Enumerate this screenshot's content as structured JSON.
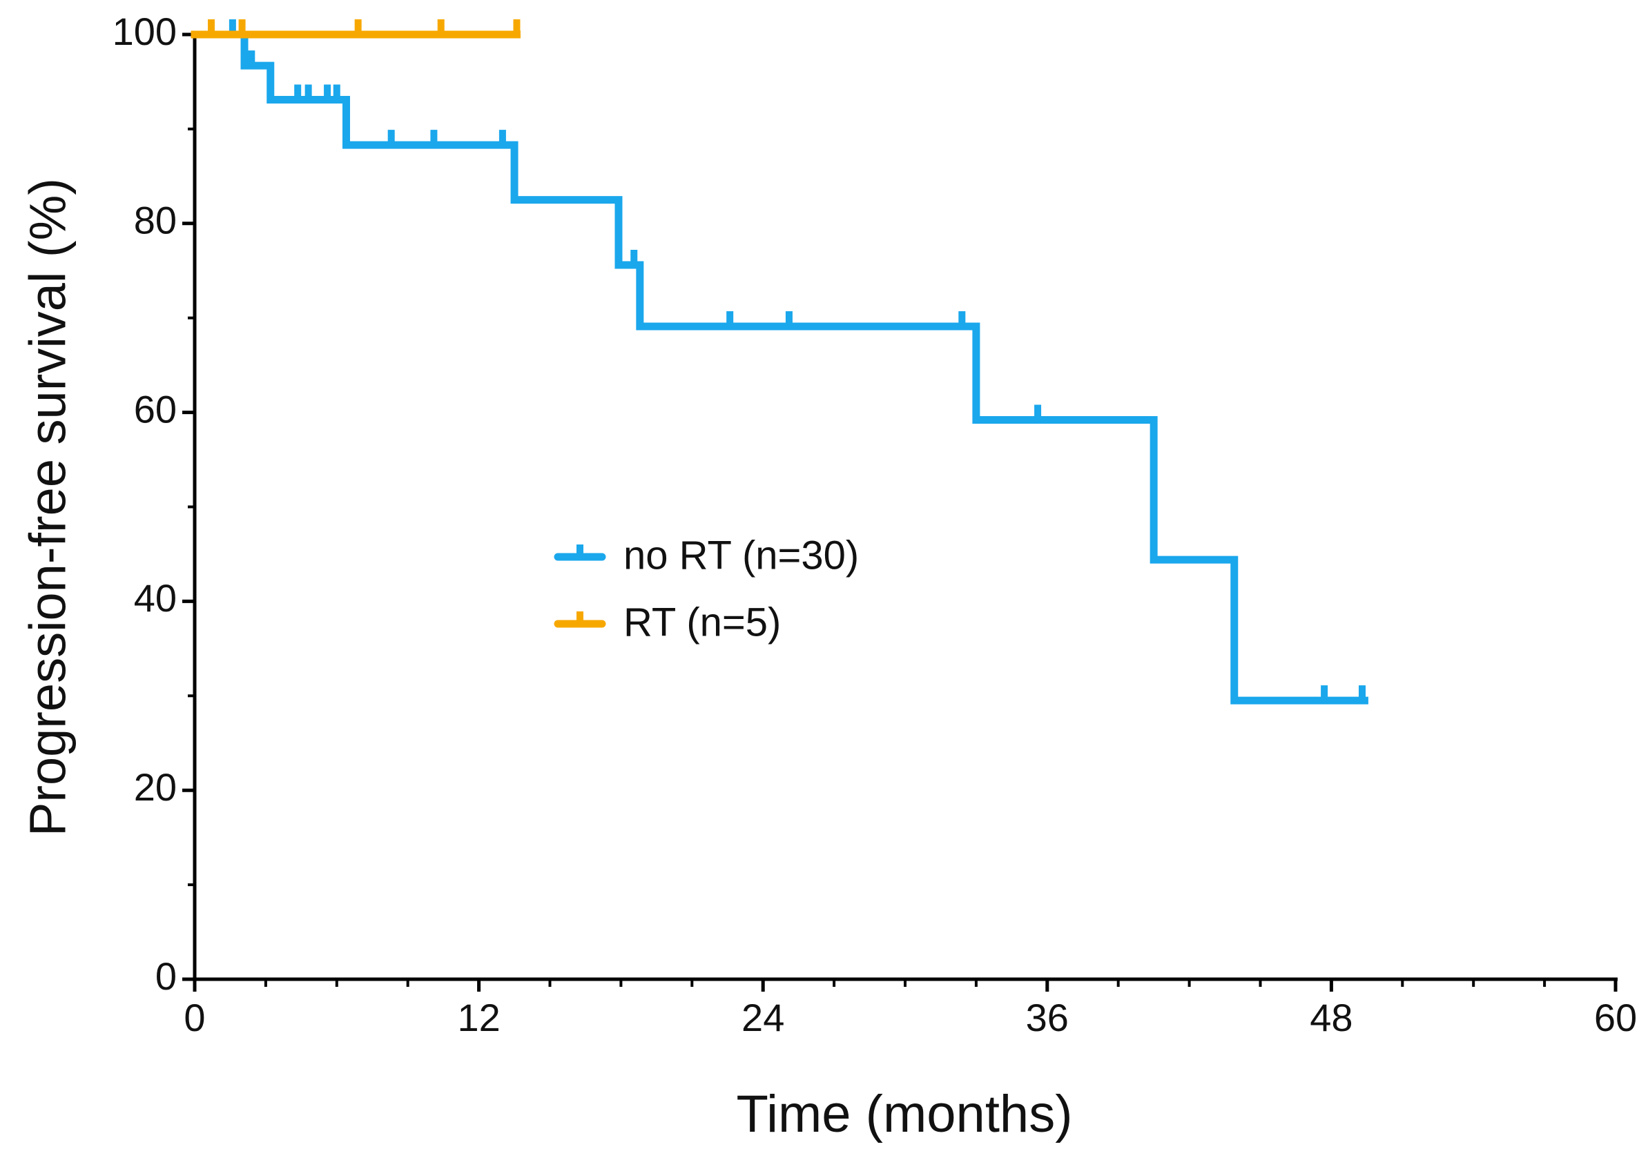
{
  "chart_data": {
    "type": "step",
    "xlabel": "Time (months)",
    "ylabel": "Progression-free survival (%)",
    "xlim": [
      0,
      60
    ],
    "ylim": [
      0,
      100
    ],
    "xticks": [
      0,
      12,
      24,
      36,
      48,
      60
    ],
    "yticks": [
      0,
      20,
      40,
      60,
      80,
      100
    ],
    "xminorticks": [
      3,
      6,
      9,
      15,
      18,
      21,
      27,
      30,
      33,
      39,
      42,
      45,
      51,
      54,
      57
    ],
    "yminorticks": [
      10,
      30,
      50,
      70,
      90
    ],
    "series": [
      {
        "name": "no RT (n=30)",
        "color": "#1aa7ec",
        "x": [
          0,
          2.1,
          3.2,
          6.4,
          13.5,
          17.9,
          18.8,
          33.0,
          40.5,
          43.9,
          49.4
        ],
        "values": [
          100,
          96.7,
          93.1,
          88.3,
          82.5,
          75.6,
          69.1,
          59.2,
          44.4,
          29.5,
          29.5
        ],
        "censored_x": [
          1.6,
          2.4,
          4.35,
          4.8,
          5.6,
          6.0,
          8.3,
          10.1,
          13.0,
          18.55,
          22.6,
          25.1,
          32.4,
          35.6,
          47.7,
          49.3
        ],
        "censored_values": [
          100,
          96.7,
          93.1,
          93.1,
          93.1,
          93.1,
          88.3,
          88.3,
          88.3,
          75.6,
          69.1,
          69.1,
          69.1,
          59.2,
          29.5,
          29.5
        ]
      },
      {
        "name": "RT (n=5)",
        "color": "#f7a800",
        "x": [
          0,
          13.6
        ],
        "values": [
          100,
          100
        ],
        "censored_x": [
          0.7,
          2.0,
          6.9,
          10.4,
          13.6
        ],
        "censored_values": [
          100,
          100,
          100,
          100,
          100
        ]
      }
    ]
  }
}
